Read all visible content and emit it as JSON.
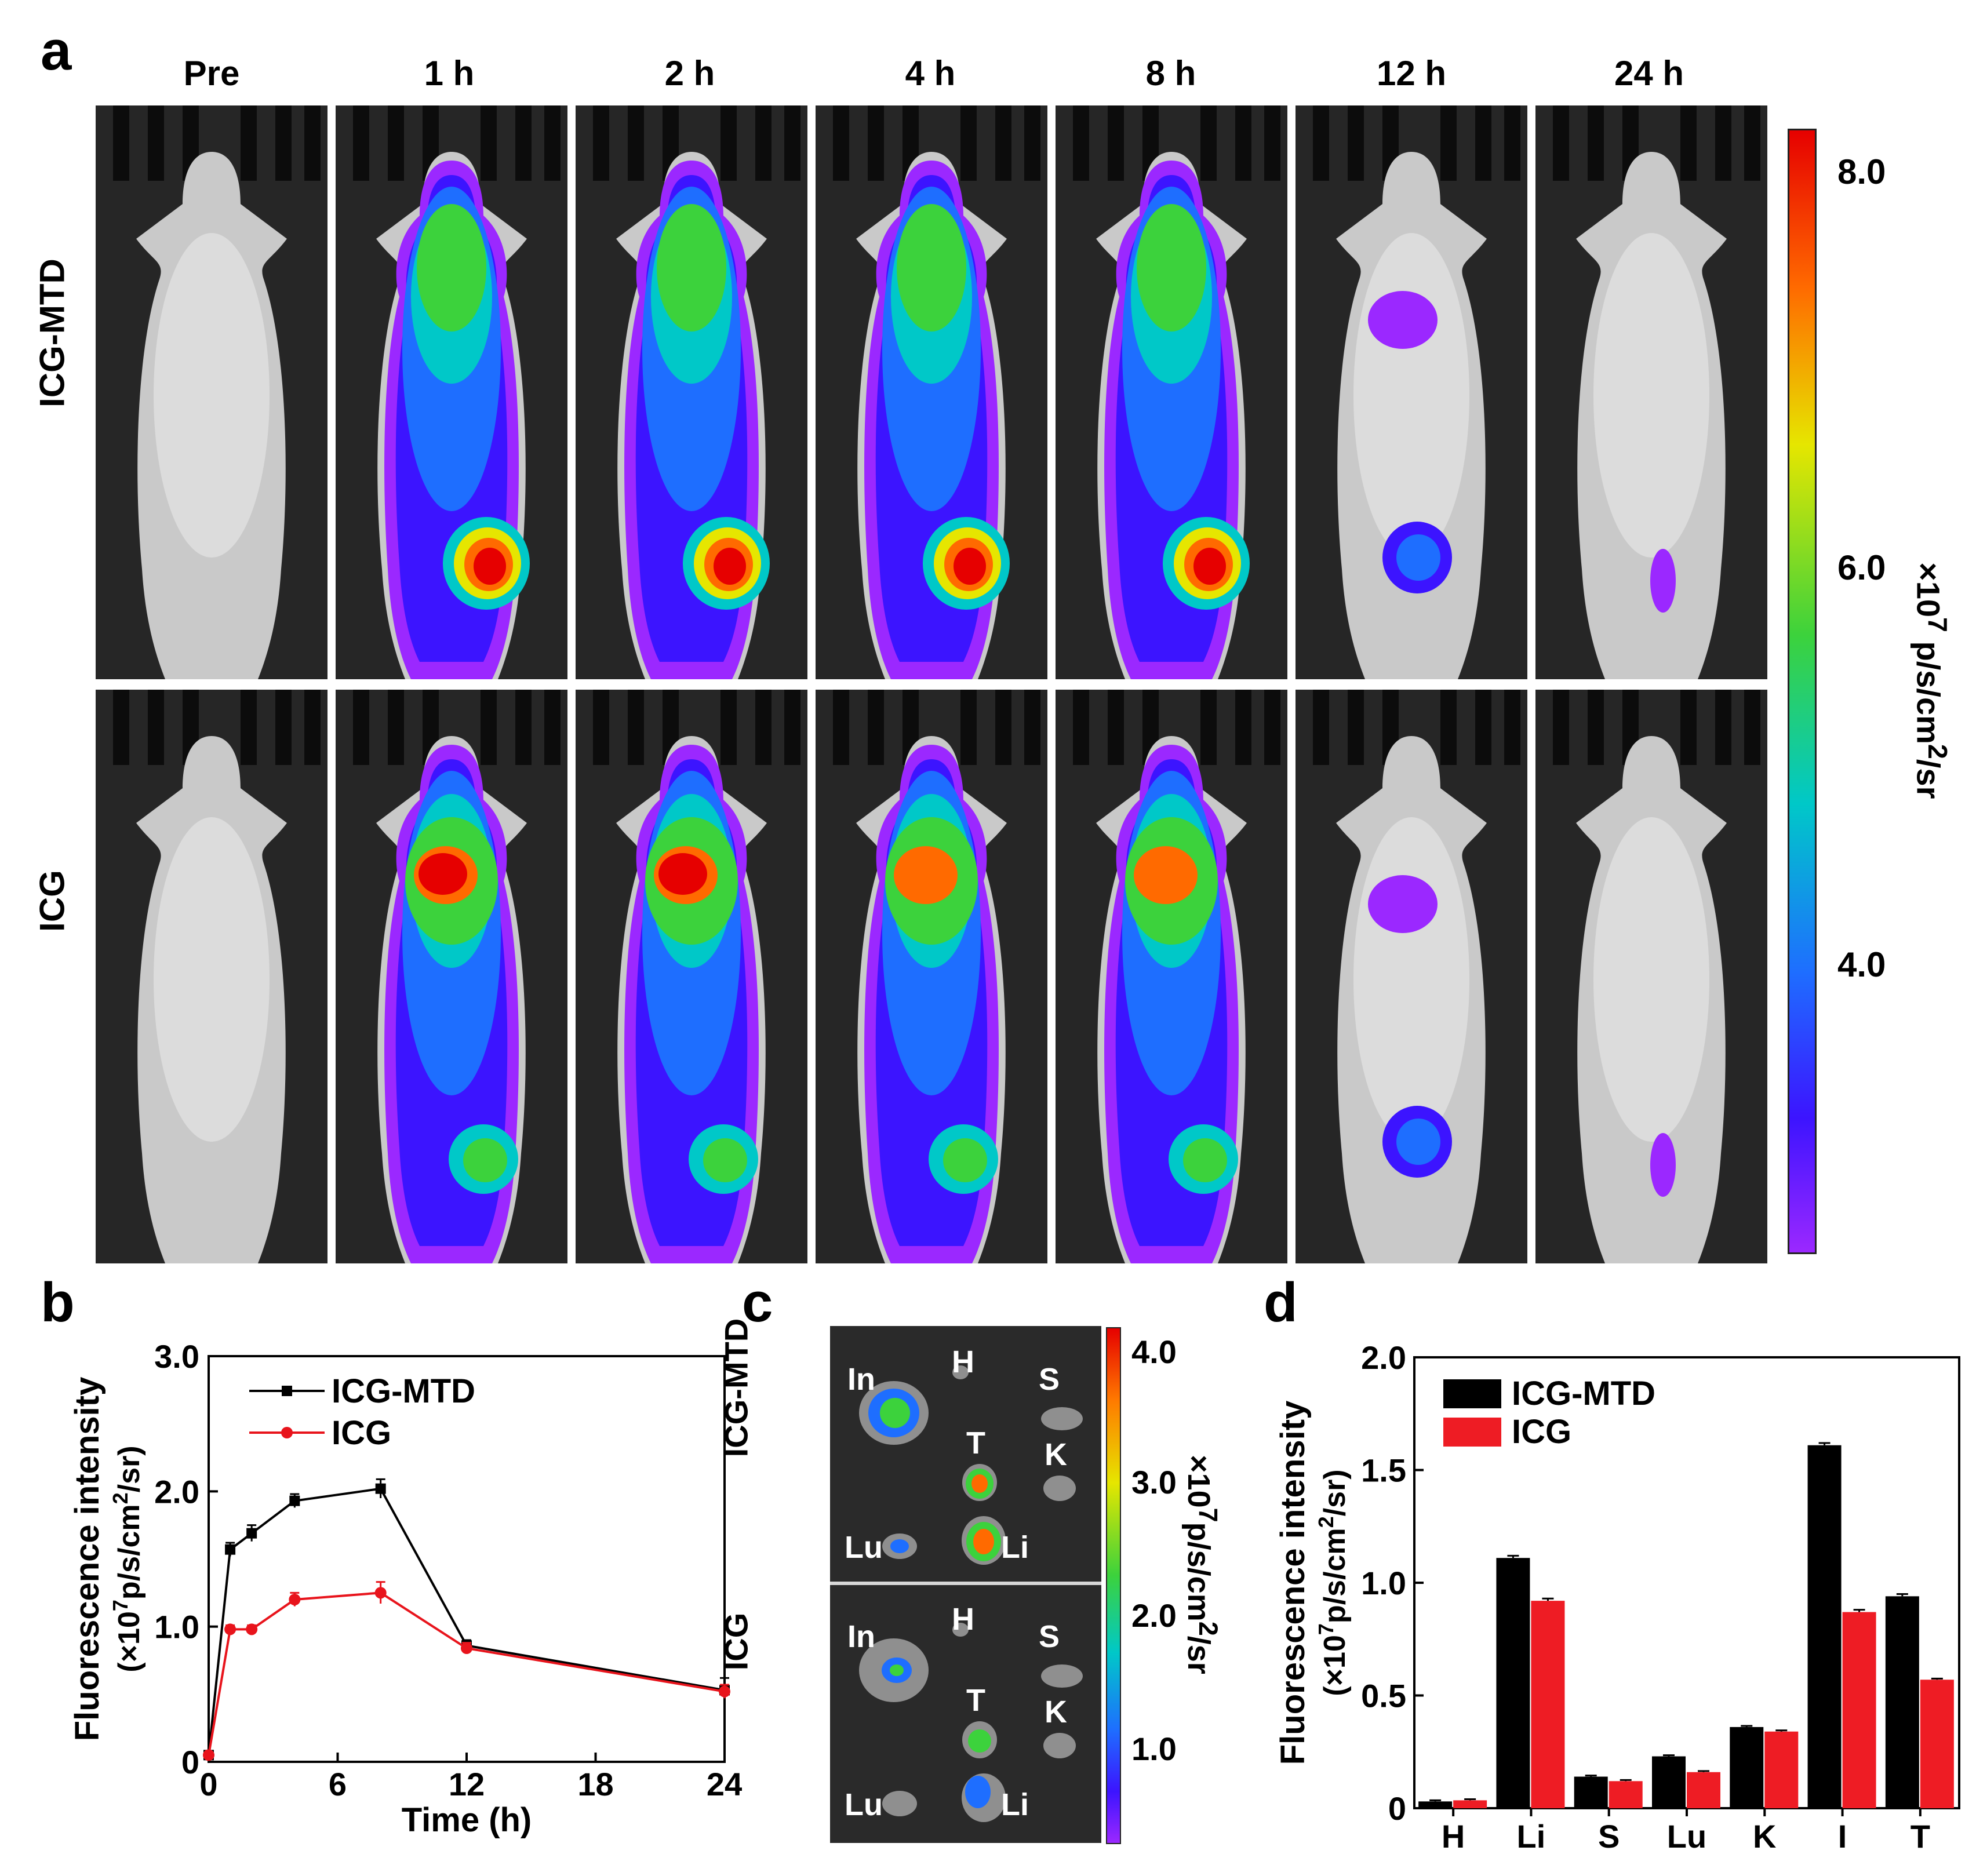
{
  "panel_a": {
    "letter": "a",
    "time_labels": [
      "Pre",
      "1 h",
      "2 h",
      "4 h",
      "8 h",
      "12 h",
      "24 h"
    ],
    "row_labels": [
      "ICG-MTD",
      "ICG"
    ],
    "colorbar": {
      "ticks": [
        "8.0",
        "6.0",
        "4.0"
      ],
      "unit_html": "×10<sup>7</sup> p/s/cm<sup>2</sup>/sr"
    },
    "intensity": [
      [
        0,
        0.55,
        0.6,
        0.7,
        0.75,
        0.15,
        0.05
      ],
      [
        0,
        0.75,
        0.8,
        0.6,
        0.65,
        0.15,
        0.05
      ]
    ]
  },
  "panel_c": {
    "letter": "c",
    "row_labels": [
      "ICG-MTD",
      "ICG"
    ],
    "organ_labels": [
      "In",
      "H",
      "S",
      "T",
      "K",
      "Lu",
      "Li"
    ],
    "colorbar": {
      "ticks": [
        "4.0",
        "3.0",
        "2.0",
        "1.0"
      ],
      "unit_html": "×10<sup>7</sup>p/s/cm<sup>2</sup>/sr"
    }
  },
  "chart_data": [
    {
      "panel": "b",
      "type": "line",
      "xlabel": "Time (h)",
      "ylabel_line1": "Fluorescence intensity",
      "ylabel_line2_html": "(×10<tspan baseline-shift='super' font-size='36'>7</tspan>p/s/cm<tspan baseline-shift='super' font-size='36'>2</tspan>/sr)",
      "x": [
        0,
        1,
        2,
        4,
        8,
        12,
        24
      ],
      "xticks": [
        0,
        6,
        12,
        18,
        24
      ],
      "xtick_labels": [
        "0",
        "6",
        "12",
        "18",
        "24"
      ],
      "yticks": [
        0,
        1,
        2,
        3
      ],
      "ytick_labels": [
        "0",
        "1.0",
        "2.0",
        "3.0"
      ],
      "xlim": [
        0,
        24
      ],
      "ylim": [
        0,
        3
      ],
      "series": [
        {
          "name": "ICG-MTD",
          "color": "#000000",
          "values": [
            0.05,
            1.57,
            1.69,
            1.93,
            2.02,
            0.86,
            0.53
          ],
          "errors": [
            0.02,
            0.05,
            0.06,
            0.05,
            0.07,
            0.04,
            0.09
          ]
        },
        {
          "name": "ICG",
          "color": "#e8141c",
          "values": [
            0.05,
            0.98,
            0.98,
            1.2,
            1.25,
            0.84,
            0.52
          ],
          "errors": [
            0.02,
            0.03,
            0.03,
            0.05,
            0.08,
            0.04,
            0.05
          ]
        }
      ]
    },
    {
      "panel": "d",
      "type": "bar",
      "ylabel_line1": "Fluorescence intensity",
      "ylabel_line2_html": "(×10<tspan baseline-shift='super' font-size='36'>7</tspan>p/s/cm<tspan baseline-shift='super' font-size='36'>2</tspan>/sr)",
      "categories": [
        "H",
        "Li",
        "S",
        "Lu",
        "K",
        "I",
        "T"
      ],
      "yticks": [
        0,
        0.5,
        1.0,
        1.5,
        2.0
      ],
      "ytick_labels": [
        "0",
        "0.5",
        "1.0",
        "1.5",
        "2.0"
      ],
      "ylim": [
        0,
        2
      ],
      "series": [
        {
          "name": "ICG-MTD",
          "color": "#000000",
          "values": [
            0.03,
            1.11,
            0.14,
            0.23,
            0.36,
            1.61,
            0.94
          ],
          "errors": [
            0.005,
            0.01,
            0.005,
            0.005,
            0.005,
            0.01,
            0.01
          ]
        },
        {
          "name": "ICG",
          "color": "#ee1c24",
          "values": [
            0.035,
            0.92,
            0.12,
            0.16,
            0.34,
            0.87,
            0.57
          ],
          "errors": [
            0.005,
            0.01,
            0.005,
            0.005,
            0.005,
            0.01,
            0.005
          ]
        }
      ]
    }
  ]
}
